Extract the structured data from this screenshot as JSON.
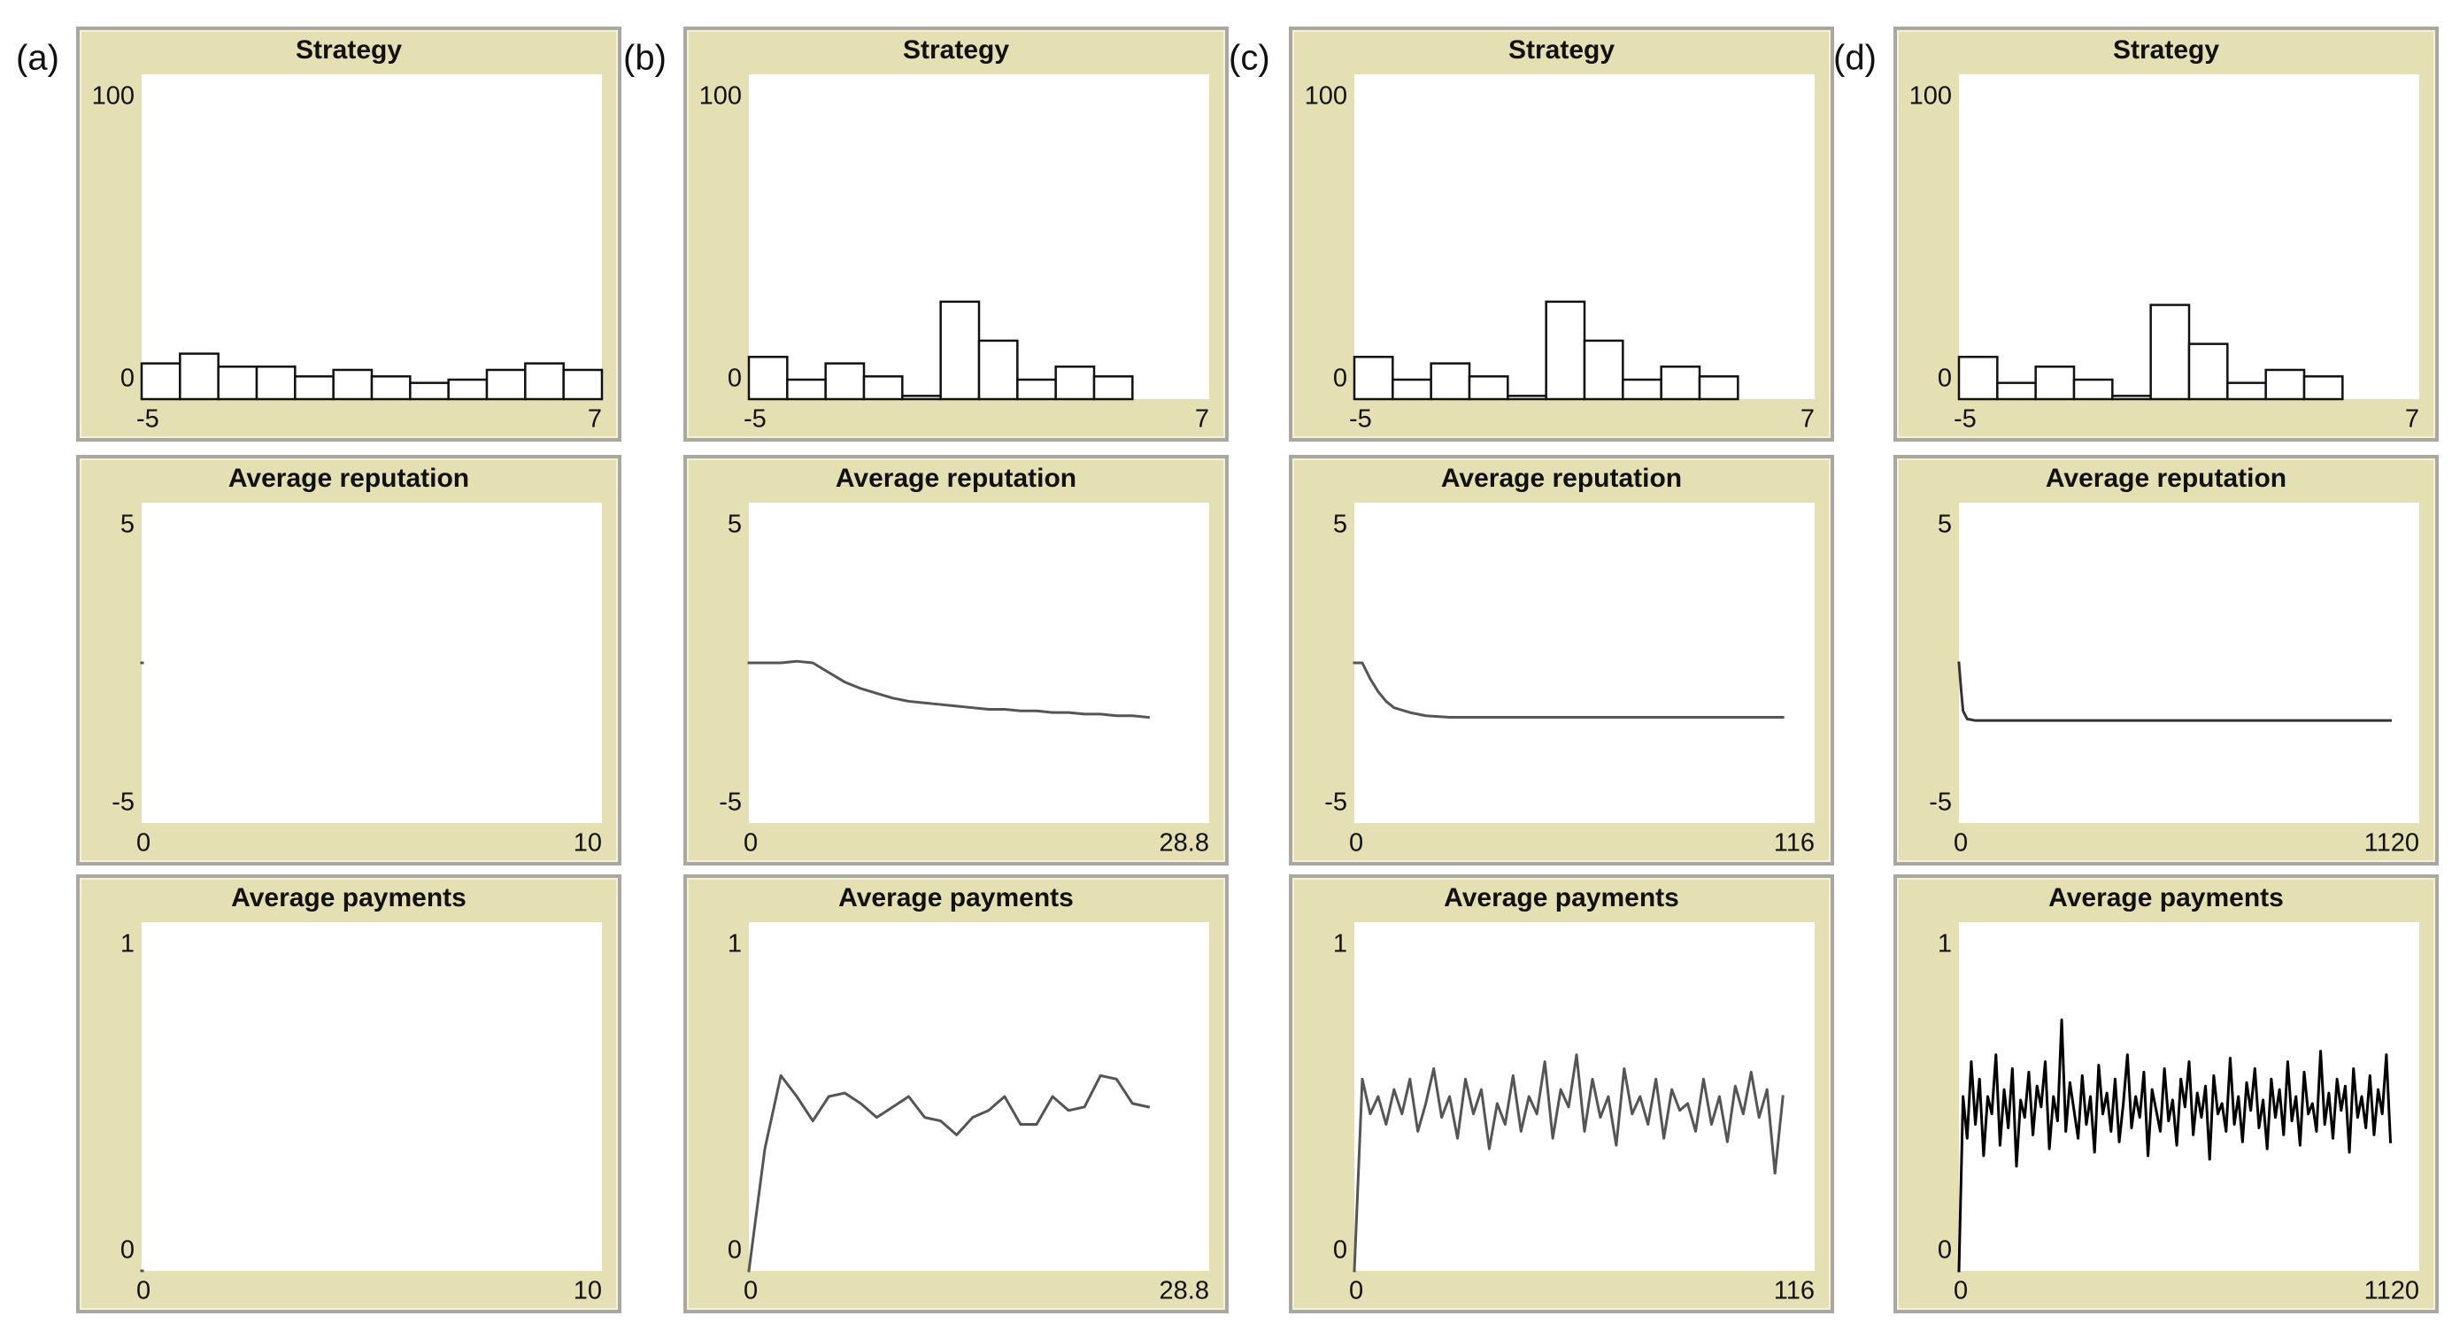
{
  "panel_labels": [
    "(a)",
    "(b)",
    "(c)",
    "(d)"
  ],
  "chart_data": [
    {
      "type": "histogram",
      "title": "Strategy",
      "bins": [
        -5,
        -4,
        -3,
        -2,
        -1,
        0,
        1,
        2,
        3,
        4,
        5,
        6,
        7
      ],
      "values": [
        11,
        14,
        10,
        10,
        7,
        9,
        7,
        5,
        6,
        9,
        11,
        9
      ],
      "color": "#ffffff",
      "xlim": [
        -5,
        7
      ],
      "ylim": [
        0,
        100
      ],
      "xticks": [
        -5,
        7
      ],
      "yticks": [
        0,
        100
      ]
    },
    {
      "type": "line",
      "title": "Average reputation",
      "x": [
        0
      ],
      "values": [
        0
      ],
      "color": "#555555",
      "xlim": [
        0,
        10
      ],
      "ylim": [
        -5,
        5
      ],
      "xticks": [
        0,
        10
      ],
      "yticks": [
        -5,
        5
      ]
    },
    {
      "type": "line",
      "title": "Average payments",
      "x": [
        0
      ],
      "values": [
        0
      ],
      "color": "#555555",
      "xlim": [
        0,
        10
      ],
      "ylim": [
        0,
        1
      ],
      "xticks": [
        0,
        10
      ],
      "yticks": [
        0,
        1
      ]
    },
    {
      "type": "histogram",
      "title": "Strategy",
      "bins": [
        -5,
        -4,
        -3,
        -2,
        -1,
        0,
        1,
        2,
        3,
        4,
        5,
        6,
        7
      ],
      "values": [
        13,
        6,
        11,
        7,
        1,
        30,
        18,
        6,
        10,
        7,
        0,
        0
      ],
      "color": "#ffffff",
      "xlim": [
        -5,
        7
      ],
      "ylim": [
        0,
        100
      ],
      "xticks": [
        -5,
        7
      ],
      "yticks": [
        0,
        100
      ]
    },
    {
      "type": "line",
      "title": "Average reputation",
      "x": [
        0,
        1,
        2,
        3,
        4,
        5,
        6,
        7,
        8,
        9,
        10,
        11,
        12,
        13,
        14,
        15,
        16,
        17,
        18,
        19,
        20,
        21,
        22,
        23,
        24,
        25
      ],
      "values": [
        0,
        0,
        0,
        0.05,
        0,
        -0.3,
        -0.6,
        -0.8,
        -0.95,
        -1.1,
        -1.2,
        -1.25,
        -1.3,
        -1.35,
        -1.4,
        -1.45,
        -1.45,
        -1.5,
        -1.5,
        -1.55,
        -1.55,
        -1.6,
        -1.6,
        -1.65,
        -1.65,
        -1.7
      ],
      "color": "#555555",
      "xlim": [
        0,
        28.8
      ],
      "ylim": [
        -5,
        5
      ],
      "xticks": [
        0,
        28.8
      ],
      "yticks": [
        -5,
        5
      ]
    },
    {
      "type": "line",
      "title": "Average payments",
      "x": [
        0,
        1,
        2,
        3,
        4,
        5,
        6,
        7,
        8,
        9,
        10,
        11,
        12,
        13,
        14,
        15,
        16,
        17,
        18,
        19,
        20,
        21,
        22,
        23,
        24,
        25
      ],
      "values": [
        0,
        0.35,
        0.56,
        0.5,
        0.43,
        0.5,
        0.51,
        0.48,
        0.44,
        0.47,
        0.5,
        0.44,
        0.43,
        0.39,
        0.44,
        0.46,
        0.5,
        0.42,
        0.42,
        0.5,
        0.46,
        0.47,
        0.56,
        0.55,
        0.48,
        0.47
      ],
      "color": "#555555",
      "xlim": [
        0,
        28.8
      ],
      "ylim": [
        0,
        1
      ],
      "xticks": [
        0,
        28.8
      ],
      "yticks": [
        0,
        1
      ]
    },
    {
      "type": "histogram",
      "title": "Strategy",
      "bins": [
        -5,
        -4,
        -3,
        -2,
        -1,
        0,
        1,
        2,
        3,
        4,
        5,
        6,
        7
      ],
      "values": [
        13,
        6,
        11,
        7,
        1,
        30,
        18,
        6,
        10,
        7,
        0,
        0
      ],
      "color": "#ffffff",
      "xlim": [
        -5,
        7
      ],
      "ylim": [
        0,
        100
      ],
      "xticks": [
        -5,
        7
      ],
      "yticks": [
        0,
        100
      ]
    },
    {
      "type": "line",
      "title": "Average reputation",
      "x": [
        0,
        2,
        4,
        6,
        8,
        10,
        14,
        18,
        24,
        30,
        108
      ],
      "values": [
        0,
        0,
        -0.5,
        -0.9,
        -1.2,
        -1.4,
        -1.55,
        -1.65,
        -1.7,
        -1.7,
        -1.7
      ],
      "color": "#555555",
      "xlim": [
        0,
        116
      ],
      "ylim": [
        -5,
        5
      ],
      "xticks": [
        0,
        116
      ],
      "yticks": [
        -5,
        5
      ]
    },
    {
      "type": "line",
      "title": "Average payments",
      "x": [
        0,
        2,
        4,
        6,
        8,
        10,
        12,
        14,
        16,
        18,
        20,
        22,
        24,
        26,
        28,
        30,
        32,
        34,
        36,
        38,
        40,
        42,
        44,
        46,
        48,
        50,
        52,
        54,
        56,
        58,
        60,
        62,
        64,
        66,
        68,
        70,
        72,
        74,
        76,
        78,
        80,
        82,
        84,
        86,
        88,
        90,
        92,
        94,
        96,
        98,
        100,
        102,
        104,
        106,
        108
      ],
      "values": [
        0,
        0.55,
        0.45,
        0.5,
        0.42,
        0.52,
        0.45,
        0.55,
        0.4,
        0.48,
        0.58,
        0.44,
        0.5,
        0.38,
        0.55,
        0.45,
        0.52,
        0.35,
        0.48,
        0.42,
        0.56,
        0.4,
        0.5,
        0.45,
        0.6,
        0.38,
        0.52,
        0.47,
        0.62,
        0.4,
        0.55,
        0.44,
        0.5,
        0.36,
        0.58,
        0.45,
        0.5,
        0.42,
        0.55,
        0.38,
        0.52,
        0.46,
        0.48,
        0.4,
        0.55,
        0.42,
        0.5,
        0.37,
        0.53,
        0.45,
        0.57,
        0.44,
        0.52,
        0.28,
        0.5
      ],
      "color": "#555555",
      "xlim": [
        0,
        116
      ],
      "ylim": [
        0,
        1
      ],
      "xticks": [
        0,
        116
      ],
      "yticks": [
        0,
        1
      ]
    },
    {
      "type": "histogram",
      "title": "Strategy",
      "bins": [
        -5,
        -4,
        -3,
        -2,
        -1,
        0,
        1,
        2,
        3,
        4,
        5,
        6,
        7
      ],
      "values": [
        13,
        5,
        10,
        6,
        1,
        29,
        17,
        5,
        9,
        7,
        0,
        0
      ],
      "color": "#ffffff",
      "xlim": [
        -5,
        7
      ],
      "ylim": [
        0,
        100
      ],
      "xticks": [
        -5,
        7
      ],
      "yticks": [
        0,
        100
      ]
    },
    {
      "type": "line",
      "title": "Average reputation",
      "x": [
        0,
        5,
        10,
        20,
        40,
        80,
        1050
      ],
      "values": [
        0,
        -0.8,
        -1.5,
        -1.75,
        -1.8,
        -1.8,
        -1.8
      ],
      "color": "#333333",
      "xlim": [
        0,
        1120
      ],
      "ylim": [
        -5,
        5
      ],
      "xticks": [
        0,
        1120
      ],
      "yticks": [
        -5,
        5
      ]
    },
    {
      "type": "line",
      "title": "Average payments",
      "x": [
        0,
        10,
        20,
        30,
        40,
        50,
        60,
        70,
        80,
        90,
        100,
        110,
        120,
        130,
        140,
        150,
        160,
        170,
        180,
        190,
        200,
        210,
        220,
        230,
        240,
        250,
        260,
        270,
        280,
        290,
        300,
        310,
        320,
        330,
        340,
        350,
        360,
        370,
        380,
        390,
        400,
        410,
        420,
        430,
        440,
        450,
        460,
        470,
        480,
        490,
        500,
        510,
        520,
        530,
        540,
        550,
        560,
        570,
        580,
        590,
        600,
        610,
        620,
        630,
        640,
        650,
        660,
        670,
        680,
        690,
        700,
        710,
        720,
        730,
        740,
        750,
        760,
        770,
        780,
        790,
        800,
        810,
        820,
        830,
        840,
        850,
        860,
        870,
        880,
        890,
        900,
        910,
        920,
        930,
        940,
        950,
        960,
        970,
        980,
        990,
        1000,
        1010,
        1020,
        1030,
        1040,
        1050
      ],
      "values": [
        0,
        0.5,
        0.38,
        0.6,
        0.42,
        0.55,
        0.33,
        0.5,
        0.45,
        0.62,
        0.36,
        0.52,
        0.41,
        0.58,
        0.3,
        0.49,
        0.44,
        0.57,
        0.39,
        0.53,
        0.47,
        0.6,
        0.35,
        0.5,
        0.43,
        0.72,
        0.4,
        0.54,
        0.46,
        0.38,
        0.56,
        0.42,
        0.5,
        0.34,
        0.59,
        0.45,
        0.51,
        0.4,
        0.55,
        0.37,
        0.48,
        0.62,
        0.41,
        0.5,
        0.44,
        0.57,
        0.33,
        0.52,
        0.46,
        0.4,
        0.58,
        0.43,
        0.49,
        0.36,
        0.55,
        0.47,
        0.6,
        0.39,
        0.51,
        0.44,
        0.53,
        0.32,
        0.56,
        0.45,
        0.48,
        0.4,
        0.61,
        0.42,
        0.5,
        0.37,
        0.54,
        0.46,
        0.58,
        0.41,
        0.49,
        0.35,
        0.55,
        0.44,
        0.52,
        0.39,
        0.6,
        0.43,
        0.5,
        0.36,
        0.57,
        0.45,
        0.48,
        0.4,
        0.63,
        0.42,
        0.51,
        0.38,
        0.55,
        0.46,
        0.53,
        0.34,
        0.58,
        0.44,
        0.5,
        0.41,
        0.56,
        0.39,
        0.52,
        0.45,
        0.62,
        0.37
      ],
      "color": "#000000",
      "xlim": [
        0,
        1120
      ],
      "ylim": [
        0,
        1
      ],
      "xticks": [
        0,
        1120
      ],
      "yticks": [
        0,
        1
      ]
    }
  ]
}
